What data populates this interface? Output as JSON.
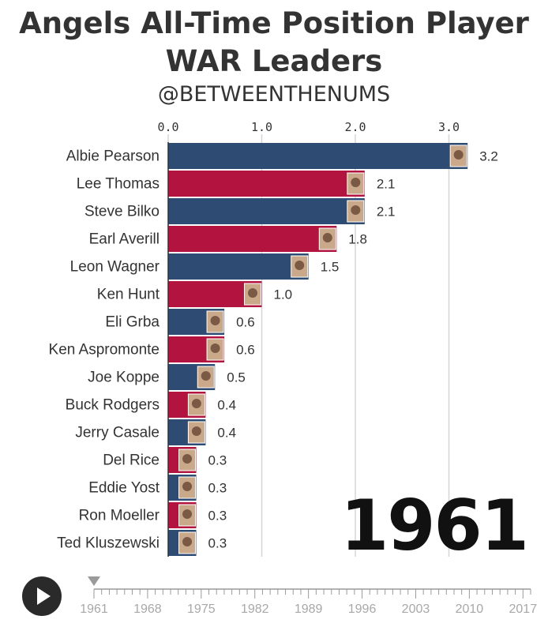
{
  "header": {
    "title_line1": "Angels All-Time Position Player",
    "title_line2": "WAR Leaders",
    "subtitle": "@BETWEENTHENUMS"
  },
  "colors": {
    "navy": "#2d4b73",
    "red": "#b3143f",
    "gridline": "#d6d6d6",
    "axis": "#333333"
  },
  "chart_data": {
    "type": "bar",
    "orientation": "horizontal",
    "title": "Angels All-Time Position Player WAR Leaders",
    "xlabel": "",
    "ylabel": "",
    "xlim": [
      0,
      3.4
    ],
    "x_ticks": [
      "0.0",
      "1.0",
      "2.0",
      "3.0"
    ],
    "x_tick_values": [
      0,
      1,
      2,
      3
    ],
    "categories": [
      "Albie Pearson",
      "Lee Thomas",
      "Steve Bilko",
      "Earl Averill",
      "Leon Wagner",
      "Ken Hunt",
      "Eli Grba",
      "Ken Aspromonte",
      "Joe Koppe",
      "Buck Rodgers",
      "Jerry Casale",
      "Del Rice",
      "Eddie Yost",
      "Ron Moeller",
      "Ted Kluszewski"
    ],
    "values": [
      3.2,
      2.1,
      2.1,
      1.8,
      1.5,
      1.0,
      0.6,
      0.6,
      0.5,
      0.4,
      0.4,
      0.3,
      0.3,
      0.3,
      0.3
    ],
    "value_labels": [
      "3.2",
      "2.1",
      "2.1",
      "1.8",
      "1.5",
      "1.0",
      "0.6",
      "0.6",
      "0.5",
      "0.4",
      "0.4",
      "0.3",
      "0.3",
      "0.3",
      "0.3"
    ],
    "bar_colors": [
      "navy",
      "red",
      "navy",
      "red",
      "navy",
      "red",
      "navy",
      "red",
      "navy",
      "red",
      "navy",
      "red",
      "navy",
      "red",
      "navy"
    ],
    "year": "1961"
  },
  "timeline": {
    "labels": [
      "1961",
      "1968",
      "1975",
      "1982",
      "1989",
      "1996",
      "2003",
      "2010",
      "2017"
    ],
    "start_year": 1961,
    "end_year": 2018,
    "current_year": 1961
  },
  "controls": {
    "play_icon": "play-icon"
  }
}
